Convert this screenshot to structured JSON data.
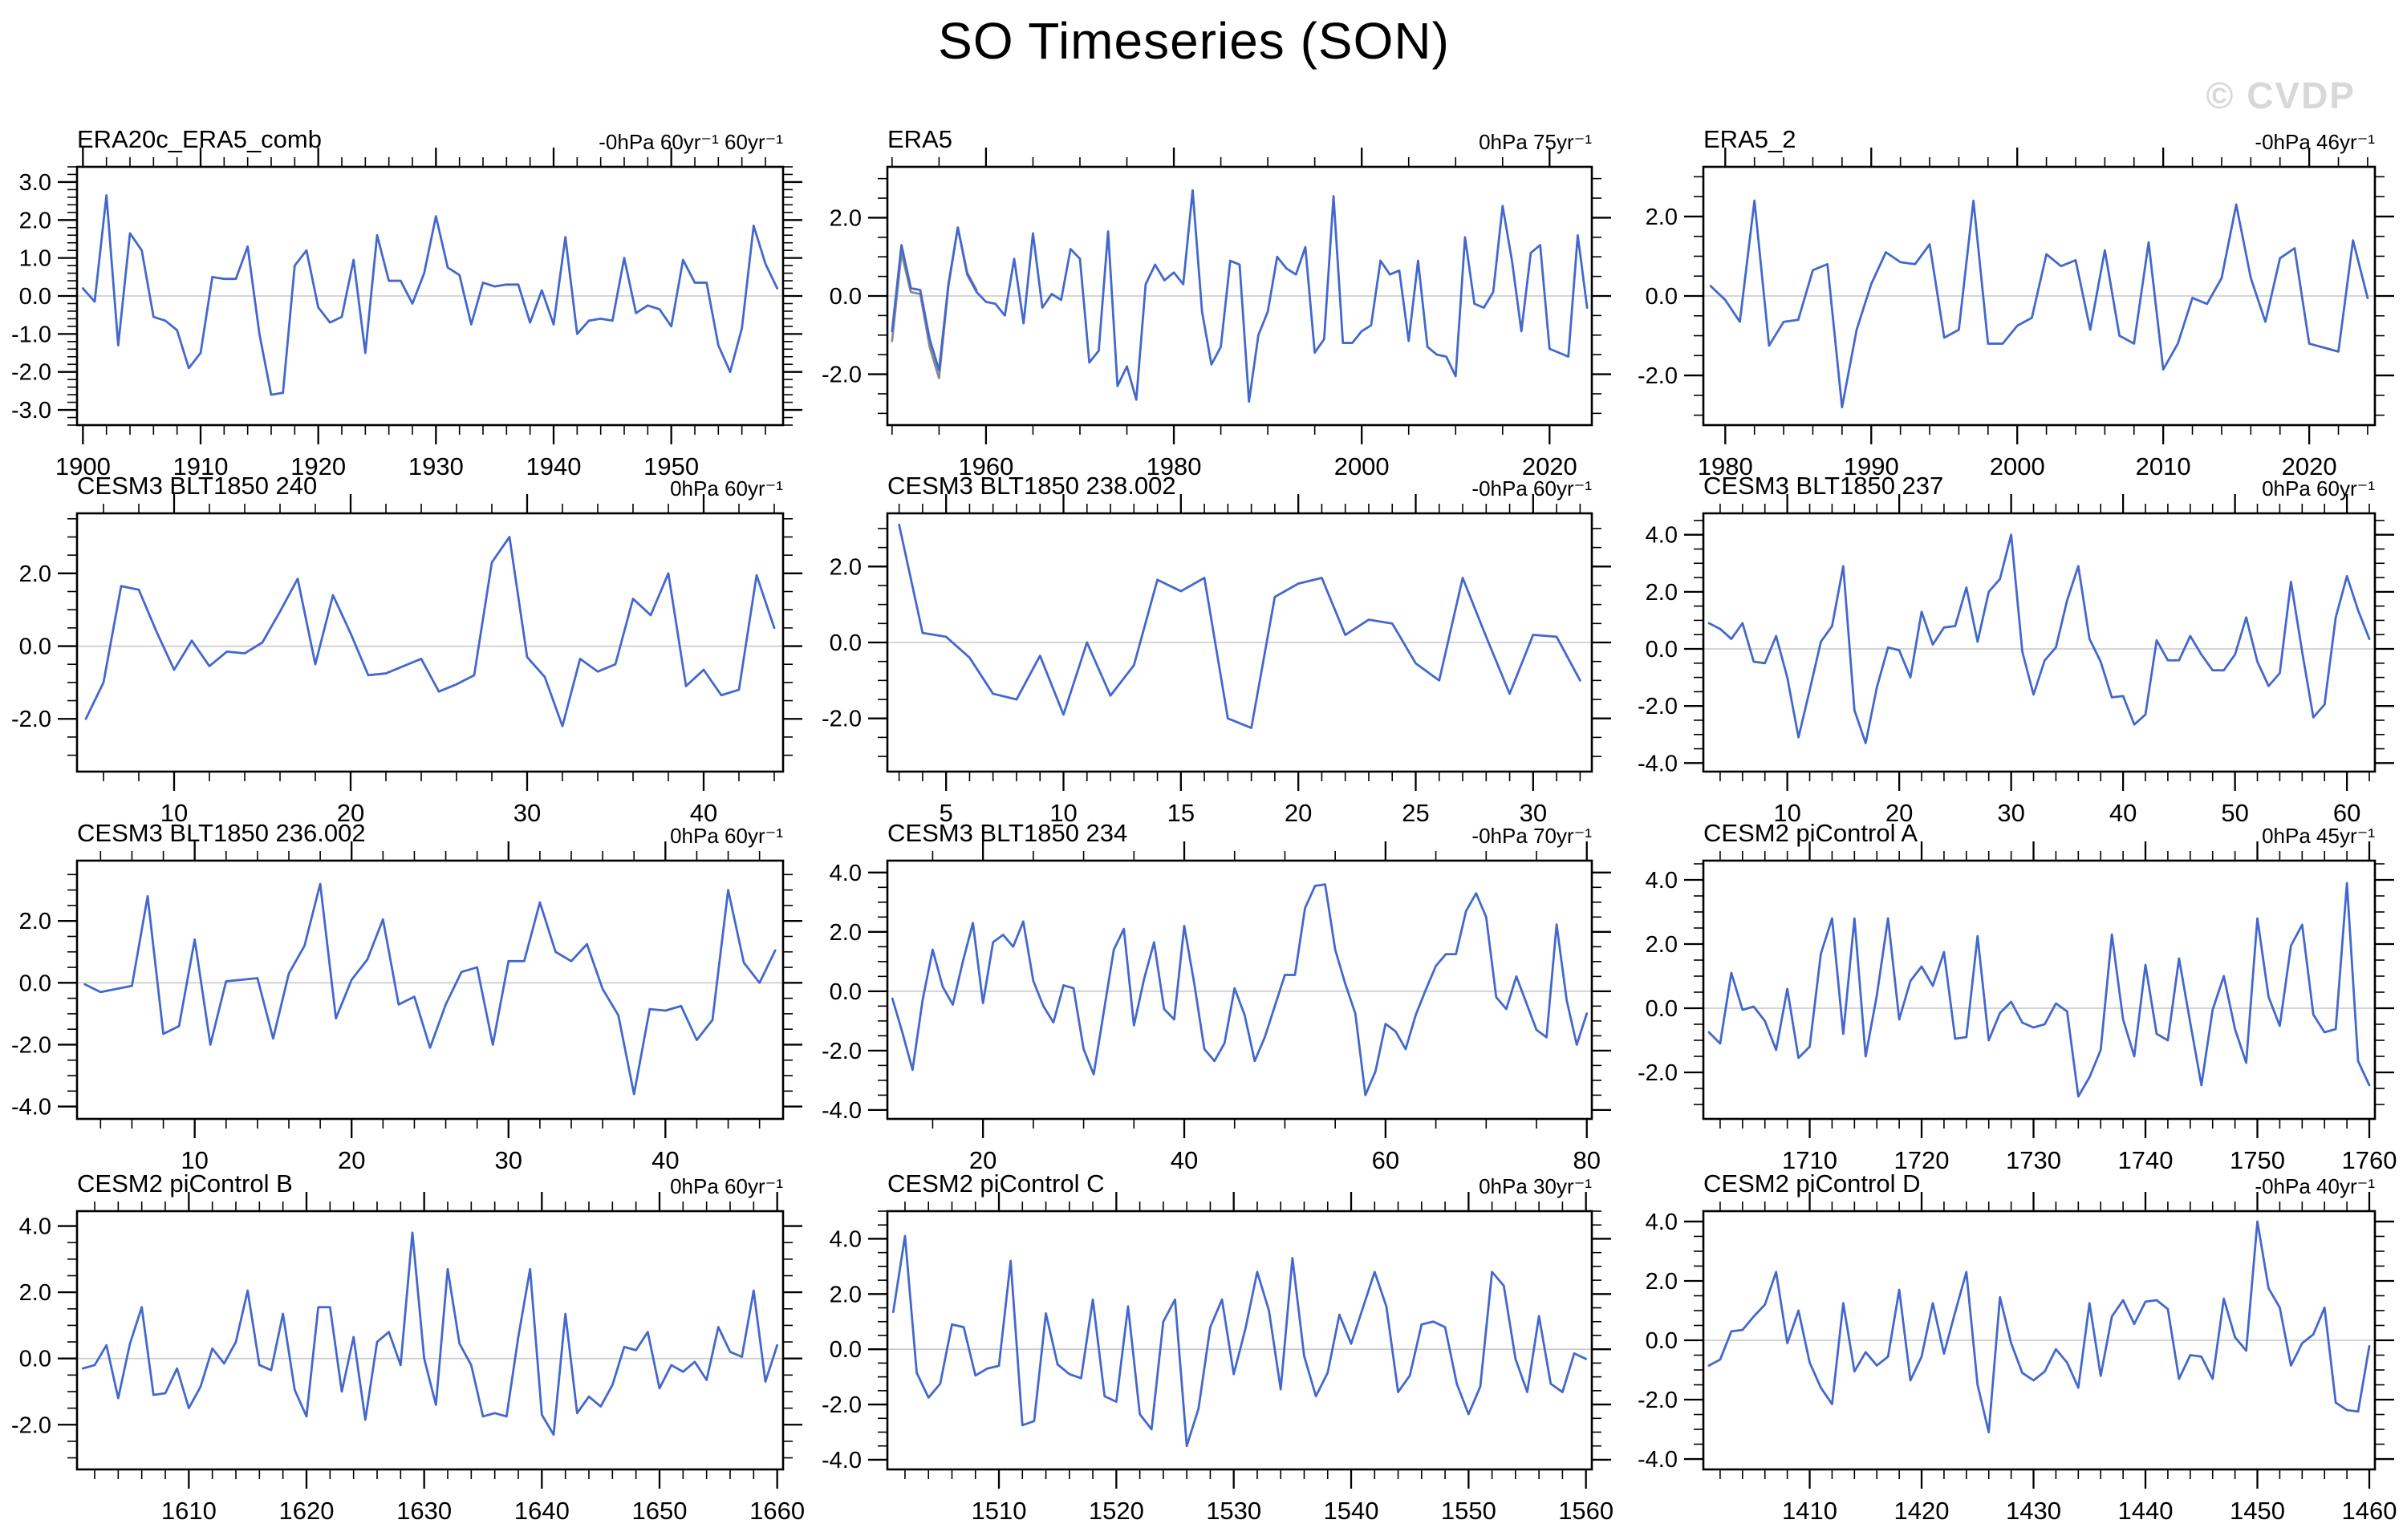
{
  "page": {
    "title": "SO Timeseries (SON)",
    "watermark": "© CVDP"
  },
  "colors": {
    "line": "#4368cd",
    "overlay": "#8a8a8a",
    "zero_line": "#c9c9c9",
    "frame": "#000000",
    "watermark": "#d8d8d8"
  },
  "chart_data": [
    {
      "type": "line",
      "title": "ERA20c_ERA5_comb",
      "trend_label": "-0hPa 60yr⁻¹ 60yr⁻¹",
      "x_start": 1900,
      "xlim": [
        1899.5,
        1959.5
      ],
      "xticks": [
        1900,
        1910,
        1920,
        1930,
        1940,
        1950
      ],
      "x_minor_step": 2,
      "ylim": [
        -3.4,
        3.4
      ],
      "yticks": [
        3,
        2,
        1,
        0,
        -1,
        -2,
        -3
      ],
      "y_major_step": 1,
      "y_minor_step": 0.2,
      "values": [
        0.2,
        -0.15,
        2.65,
        -1.3,
        1.65,
        1.2,
        -0.55,
        -0.65,
        -0.9,
        -1.9,
        -1.5,
        0.5,
        0.45,
        0.45,
        1.3,
        -1.0,
        -2.6,
        -2.55,
        0.8,
        1.2,
        -0.3,
        -0.7,
        -0.55,
        0.95,
        -1.5,
        1.6,
        0.4,
        0.4,
        -0.2,
        0.6,
        2.1,
        0.75,
        0.55,
        -0.75,
        0.35,
        0.25,
        0.3,
        0.3,
        -0.7,
        0.15,
        -0.75,
        1.55,
        -1.0,
        -0.65,
        -0.6,
        -0.65,
        1.0,
        -0.45,
        -0.25,
        -0.35,
        -0.8,
        0.95,
        0.35,
        0.35,
        -1.3,
        -2.0,
        -0.85,
        1.85,
        0.85,
        0.2
      ]
    },
    {
      "type": "line",
      "title": "ERA5",
      "trend_label": "0hPa 75yr⁻¹",
      "x_start": 1950,
      "xlim": [
        1949.5,
        2024.5
      ],
      "xticks": [
        1960,
        1980,
        2000,
        2020
      ],
      "x_minor_step": 5,
      "ylim": [
        -3.3,
        3.3
      ],
      "yticks": [
        2,
        0,
        -2
      ],
      "y_major_step": 2,
      "y_minor_step": 0.5,
      "values": [
        -0.9,
        1.3,
        0.2,
        0.15,
        -1.1,
        -1.9,
        0.3,
        1.75,
        0.55,
        0.1,
        -0.15,
        -0.2,
        -0.5,
        0.95,
        -0.7,
        1.6,
        -0.3,
        0.05,
        -0.1,
        1.2,
        0.95,
        -1.7,
        -1.4,
        1.65,
        -2.3,
        -1.8,
        -2.65,
        0.3,
        0.8,
        0.4,
        0.6,
        0.3,
        2.7,
        -0.4,
        -1.75,
        -1.3,
        0.9,
        0.8,
        -2.7,
        -1.0,
        -0.4,
        1.0,
        0.7,
        0.55,
        1.25,
        -1.45,
        -1.1,
        2.55,
        -1.2,
        -1.2,
        -0.9,
        -0.75,
        0.9,
        0.55,
        0.65,
        -1.15,
        0.9,
        -1.3,
        -1.5,
        -1.55,
        -2.05,
        1.5,
        -0.2,
        -0.3,
        0.1,
        2.3,
        0.9,
        -0.9,
        1.1,
        1.3,
        -1.35,
        -1.45,
        -1.55,
        1.55,
        -0.3
      ],
      "overlay": {
        "x_start": 1950,
        "values": [
          -1.15,
          1.1,
          0.1,
          0.05,
          -1.3,
          -2.1,
          0.25,
          1.75,
          0.6,
          0.15
        ]
      }
    },
    {
      "type": "line",
      "title": "ERA5_2",
      "trend_label": "-0hPa 46yr⁻¹",
      "x_start": 1979,
      "xlim": [
        1978.5,
        2024.5
      ],
      "xticks": [
        1980,
        1990,
        2000,
        2010,
        2020
      ],
      "x_minor_step": 2,
      "ylim": [
        -3.25,
        3.25
      ],
      "yticks": [
        2,
        0,
        -2
      ],
      "y_major_step": 2,
      "y_minor_step": 0.5,
      "values": [
        0.25,
        -0.1,
        -0.65,
        2.4,
        -1.25,
        -0.65,
        -0.6,
        0.65,
        0.8,
        -2.8,
        -0.85,
        0.3,
        1.1,
        0.85,
        0.8,
        1.3,
        -1.05,
        -0.85,
        2.4,
        -1.2,
        -1.2,
        -0.75,
        -0.55,
        1.05,
        0.75,
        0.9,
        -0.85,
        1.15,
        -1.0,
        -1.2,
        1.35,
        -1.85,
        -1.2,
        -0.05,
        -0.2,
        0.45,
        2.3,
        0.45,
        -0.65,
        0.95,
        1.2,
        -1.2,
        -1.3,
        -1.4,
        1.4,
        -0.05
      ]
    },
    {
      "type": "line",
      "title": "CESM3 BLT1850 240",
      "trend_label": "0hPa 60yr⁻¹",
      "x_start": 5,
      "xlim": [
        4.5,
        44.5
      ],
      "xticks": [
        10,
        20,
        30,
        40
      ],
      "x_minor_step": 2,
      "ylim": [
        -3.45,
        3.65
      ],
      "yticks": [
        2,
        0,
        -2
      ],
      "y_major_step": 2,
      "y_minor_step": 0.5,
      "values": [
        -2.0,
        -1.0,
        1.65,
        1.55,
        0.4,
        -0.65,
        0.15,
        -0.55,
        -0.15,
        -0.2,
        0.1,
        0.95,
        1.85,
        -0.5,
        1.4,
        0.35,
        -0.8,
        -0.75,
        -0.55,
        -0.35,
        -1.25,
        -1.05,
        -0.8,
        2.3,
        3.0,
        -0.3,
        -0.85,
        -2.2,
        -0.35,
        -0.7,
        -0.5,
        1.3,
        0.85,
        2.0,
        -1.1,
        -0.65,
        -1.35,
        -1.2,
        1.95,
        0.5
      ]
    },
    {
      "type": "line",
      "title": "CESM3 BLT1850 238.002",
      "trend_label": "-0hPa 60yr⁻¹",
      "x_start": 3,
      "xlim": [
        2.5,
        32.5
      ],
      "xticks": [
        5,
        10,
        15,
        20,
        25,
        30
      ],
      "x_minor_step": 1,
      "ylim": [
        -3.4,
        3.4
      ],
      "yticks": [
        2,
        0,
        -2
      ],
      "y_major_step": 2,
      "y_minor_step": 0.5,
      "values": [
        3.1,
        0.25,
        0.15,
        -0.4,
        -1.35,
        -1.5,
        -0.35,
        -1.9,
        0.0,
        -1.4,
        -0.6,
        1.65,
        1.35,
        1.7,
        -2.0,
        -2.25,
        1.2,
        1.55,
        1.7,
        0.2,
        0.6,
        0.5,
        -0.55,
        -1.0,
        1.7,
        0.15,
        -1.35,
        0.2,
        0.15,
        -1.0
      ]
    },
    {
      "type": "line",
      "title": "CESM3 BLT1850 237",
      "trend_label": "0hPa 60yr⁻¹",
      "x_start": 3,
      "xlim": [
        2.5,
        62.5
      ],
      "xticks": [
        10,
        20,
        30,
        40,
        50,
        60
      ],
      "x_minor_step": 2,
      "ylim": [
        -4.3,
        4.75
      ],
      "yticks": [
        4,
        2,
        0,
        -2,
        -4
      ],
      "y_major_step": 2,
      "y_minor_step": 0.5,
      "values": [
        0.9,
        0.7,
        0.35,
        0.9,
        -0.45,
        -0.5,
        0.45,
        -1.0,
        -3.1,
        -1.45,
        0.25,
        0.8,
        2.9,
        -2.15,
        -3.3,
        -1.35,
        0.05,
        -0.05,
        -1.0,
        1.3,
        0.15,
        0.75,
        0.8,
        2.15,
        0.25,
        2.0,
        2.45,
        4.0,
        -0.1,
        -1.6,
        -0.4,
        0.05,
        1.7,
        2.9,
        0.35,
        -0.45,
        -1.7,
        -1.65,
        -2.65,
        -2.3,
        0.3,
        -0.4,
        -0.4,
        0.45,
        -0.2,
        -0.75,
        -0.75,
        -0.2,
        1.1,
        -0.45,
        -1.3,
        -0.85,
        2.35,
        -0.1,
        -2.4,
        -1.95,
        1.1,
        2.55,
        1.35,
        0.35
      ]
    },
    {
      "type": "line",
      "title": "CESM3 BLT1850 236.002",
      "trend_label": "0hPa 60yr⁻¹",
      "x_start": 3,
      "xlim": [
        2.5,
        47.5
      ],
      "xticks": [
        10,
        20,
        30,
        40
      ],
      "x_minor_step": 2,
      "ylim": [
        -4.4,
        3.95
      ],
      "yticks": [
        2,
        0,
        -2,
        -4
      ],
      "y_major_step": 2,
      "y_minor_step": 0.5,
      "values": [
        -0.05,
        -0.3,
        -0.2,
        -0.1,
        2.8,
        -1.65,
        -1.4,
        1.4,
        -2.0,
        0.05,
        0.1,
        0.15,
        -1.8,
        0.3,
        1.2,
        3.2,
        -1.15,
        0.1,
        0.75,
        2.05,
        -0.7,
        -0.45,
        -2.1,
        -0.7,
        0.35,
        0.5,
        -2.0,
        0.7,
        0.7,
        2.6,
        1.0,
        0.7,
        1.25,
        -0.2,
        -1.05,
        -3.6,
        -0.85,
        -0.9,
        -0.75,
        -1.85,
        -1.2,
        3.0,
        0.65,
        0.0,
        1.05
      ]
    },
    {
      "type": "line",
      "title": "CESM3 BLT1850 234",
      "trend_label": "-0hPa 70yr⁻¹",
      "x_start": 11,
      "xlim": [
        10.5,
        80.5
      ],
      "xticks": [
        20,
        40,
        60,
        80
      ],
      "x_minor_step": 5,
      "ylim": [
        -4.3,
        4.4
      ],
      "yticks": [
        4,
        2,
        0,
        -2,
        -4
      ],
      "y_major_step": 2,
      "y_minor_step": 0.5,
      "values": [
        -0.25,
        -1.4,
        -2.65,
        -0.3,
        1.4,
        0.15,
        -0.45,
        1.0,
        2.3,
        -0.4,
        1.65,
        1.9,
        1.5,
        2.35,
        0.35,
        -0.5,
        -1.05,
        0.2,
        0.1,
        -1.95,
        -2.8,
        -0.7,
        1.4,
        2.1,
        -1.15,
        0.4,
        1.65,
        -0.6,
        -0.95,
        2.2,
        0.25,
        -1.95,
        -2.35,
        -1.75,
        0.1,
        -0.8,
        -2.35,
        -1.55,
        -0.5,
        0.55,
        0.55,
        2.8,
        3.55,
        3.6,
        1.4,
        0.25,
        -0.75,
        -3.5,
        -2.7,
        -1.1,
        -1.35,
        -1.95,
        -0.8,
        0.05,
        0.85,
        1.25,
        1.25,
        2.7,
        3.3,
        2.5,
        -0.2,
        -0.6,
        0.5,
        -0.4,
        -1.3,
        -1.55,
        2.25,
        -0.3,
        -1.8,
        -0.75
      ]
    },
    {
      "type": "line",
      "title": "CESM2 piControl A",
      "trend_label": "0hPa 45yr⁻¹",
      "x_start": 1701,
      "xlim": [
        1700.5,
        1760.5
      ],
      "xticks": [
        1710,
        1720,
        1730,
        1740,
        1750,
        1760
      ],
      "x_minor_step": 2,
      "ylim": [
        -3.45,
        4.6
      ],
      "yticks": [
        4,
        2,
        0,
        -2
      ],
      "y_major_step": 2,
      "y_minor_step": 0.5,
      "values": [
        -0.75,
        -1.1,
        1.1,
        -0.05,
        0.05,
        -0.4,
        -1.3,
        0.6,
        -1.55,
        -1.2,
        1.7,
        2.8,
        -0.8,
        2.8,
        -1.5,
        0.4,
        2.8,
        -0.35,
        0.85,
        1.3,
        0.7,
        1.75,
        -0.95,
        -0.9,
        2.25,
        -1.0,
        -0.15,
        0.2,
        -0.45,
        -0.6,
        -0.5,
        0.15,
        -0.1,
        -2.75,
        -2.15,
        -1.3,
        2.3,
        -0.35,
        -1.5,
        1.35,
        -0.8,
        -1.0,
        1.55,
        -0.45,
        -2.4,
        -0.05,
        1.0,
        -0.65,
        -1.7,
        2.8,
        0.35,
        -0.55,
        1.95,
        2.6,
        -0.2,
        -0.75,
        -0.65,
        3.9,
        -1.65,
        -2.4
      ]
    },
    {
      "type": "line",
      "title": "CESM2 piControl B",
      "trend_label": "0hPa 60yr⁻¹",
      "x_start": 1601,
      "xlim": [
        1600.5,
        1660.5
      ],
      "xticks": [
        1610,
        1620,
        1630,
        1640,
        1650,
        1660
      ],
      "x_minor_step": 2,
      "ylim": [
        -3.35,
        4.45
      ],
      "yticks": [
        4,
        2,
        0,
        -2
      ],
      "y_major_step": 2,
      "y_minor_step": 0.5,
      "values": [
        -0.3,
        -0.2,
        0.4,
        -1.2,
        0.45,
        1.55,
        -1.1,
        -1.05,
        -0.3,
        -1.5,
        -0.85,
        0.3,
        -0.15,
        0.5,
        2.05,
        -0.2,
        -0.35,
        1.35,
        -0.95,
        -1.75,
        1.55,
        1.55,
        -1.0,
        0.65,
        -1.85,
        0.5,
        0.8,
        -0.2,
        3.8,
        0.0,
        -1.4,
        2.7,
        0.45,
        -0.2,
        -1.75,
        -1.65,
        -1.75,
        0.65,
        2.7,
        -1.7,
        -2.3,
        1.35,
        -1.65,
        -1.15,
        -1.45,
        -0.8,
        0.35,
        0.25,
        0.8,
        -0.9,
        -0.2,
        -0.4,
        -0.1,
        -0.65,
        0.95,
        0.2,
        0.05,
        2.05,
        -0.7,
        0.4
      ]
    },
    {
      "type": "line",
      "title": "CESM2 piControl C",
      "trend_label": "0hPa 30yr⁻¹",
      "x_start": 1501,
      "xlim": [
        1500.5,
        1560.5
      ],
      "xticks": [
        1510,
        1520,
        1530,
        1540,
        1550,
        1560
      ],
      "x_minor_step": 2,
      "ylim": [
        -4.35,
        5.0
      ],
      "yticks": [
        4,
        2,
        0,
        -2,
        -4
      ],
      "y_major_step": 2,
      "y_minor_step": 0.5,
      "values": [
        1.35,
        4.1,
        -0.85,
        -1.75,
        -1.25,
        0.9,
        0.8,
        -0.95,
        -0.7,
        -0.6,
        3.2,
        -2.75,
        -2.6,
        1.3,
        -0.55,
        -0.9,
        -1.05,
        1.8,
        -1.7,
        -1.9,
        1.55,
        -2.35,
        -2.9,
        1.0,
        1.8,
        -3.5,
        -2.15,
        0.8,
        1.8,
        -0.9,
        0.75,
        2.8,
        1.4,
        -1.45,
        3.3,
        -0.25,
        -1.7,
        -0.85,
        1.25,
        0.2,
        1.5,
        2.8,
        1.55,
        -1.55,
        -0.95,
        0.9,
        1.0,
        0.8,
        -1.25,
        -2.35,
        -1.35,
        2.8,
        2.3,
        -0.35,
        -1.55,
        1.2,
        -1.25,
        -1.55,
        -0.15,
        -0.35
      ]
    },
    {
      "type": "line",
      "title": "CESM2 piControl D",
      "trend_label": "-0hPa 40yr⁻¹",
      "x_start": 1401,
      "xlim": [
        1400.5,
        1460.5
      ],
      "xticks": [
        1410,
        1420,
        1430,
        1440,
        1450,
        1460
      ],
      "x_minor_step": 2,
      "ylim": [
        -4.35,
        4.35
      ],
      "yticks": [
        4,
        2,
        0,
        -2,
        -4
      ],
      "y_major_step": 2,
      "y_minor_step": 0.5,
      "values": [
        -0.85,
        -0.65,
        0.3,
        0.35,
        0.8,
        1.2,
        2.3,
        -0.1,
        1.0,
        -0.75,
        -1.6,
        -2.15,
        1.25,
        -1.05,
        -0.4,
        -0.85,
        -0.55,
        1.7,
        -1.35,
        -0.55,
        1.25,
        -0.45,
        0.95,
        2.3,
        -1.5,
        -3.1,
        1.45,
        -0.1,
        -1.1,
        -1.35,
        -1.05,
        -0.3,
        -0.75,
        -1.6,
        1.25,
        -1.2,
        0.8,
        1.35,
        0.55,
        1.3,
        1.35,
        1.05,
        -1.3,
        -0.5,
        -0.55,
        -1.3,
        1.4,
        0.1,
        -0.35,
        4.0,
        1.75,
        1.1,
        -0.85,
        -0.1,
        0.2,
        1.1,
        -2.1,
        -2.35,
        -2.4,
        -0.2
      ]
    }
  ]
}
